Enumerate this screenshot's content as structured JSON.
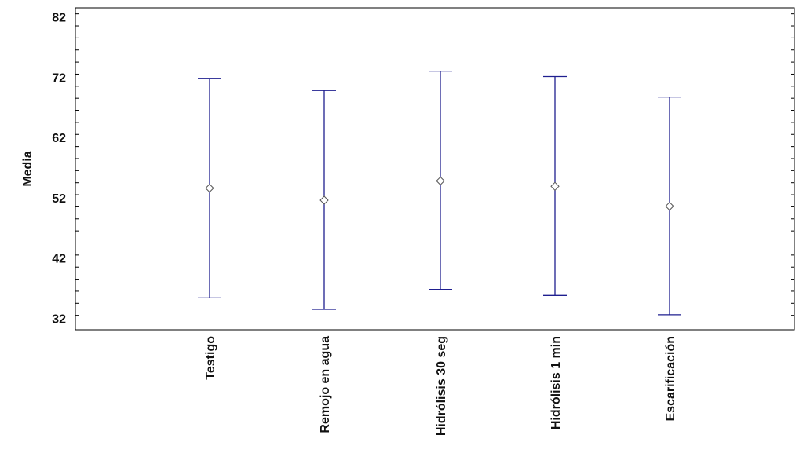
{
  "chart_data": {
    "type": "error-bar",
    "ylabel": "Media",
    "xlabel": "",
    "ylim": [
      30.5,
      83.5
    ],
    "yticks": [
      32,
      42,
      52,
      62,
      72,
      82
    ],
    "grid": false,
    "colors": {
      "bars": "#1f1f8f",
      "points": "#555555",
      "axis": "#000000"
    },
    "categories": [
      "Testigo",
      "Remojo en agua",
      "Hidrólisis 30 seg",
      "Hidrólisis 1 min",
      "Escarificación"
    ],
    "means": [
      53.6,
      51.6,
      54.8,
      53.9,
      50.6
    ],
    "lower": [
      35.4,
      33.5,
      36.8,
      35.8,
      32.6
    ],
    "upper": [
      71.8,
      69.8,
      73.0,
      72.1,
      68.7
    ]
  }
}
